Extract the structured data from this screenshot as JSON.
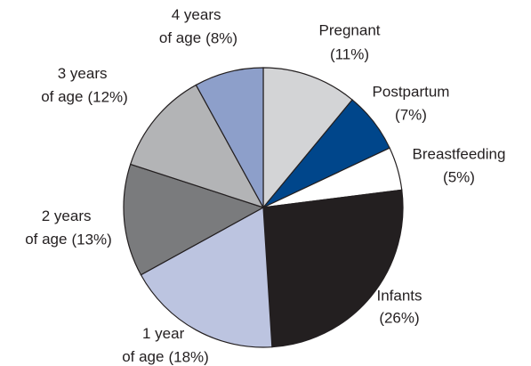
{
  "chart_data": {
    "type": "pie",
    "categories": [
      "Pregnant",
      "Postpartum",
      "Breastfeeding",
      "Infants",
      "1 year of age",
      "2 years of age",
      "3 years of age",
      "4 years of age"
    ],
    "values": [
      11,
      7,
      5,
      26,
      18,
      13,
      12,
      8
    ],
    "value_labels": [
      "(11%)",
      "(7%)",
      "(5%)",
      "(26%)",
      "(18%)",
      "(13%)",
      "(12%)",
      "(8%)"
    ],
    "colors": [
      "#d3d4d6",
      "#00468b",
      "#ffffff",
      "#231f20",
      "#bcc4e0",
      "#7a7b7d",
      "#b3b4b6",
      "#8d9fca"
    ]
  }
}
